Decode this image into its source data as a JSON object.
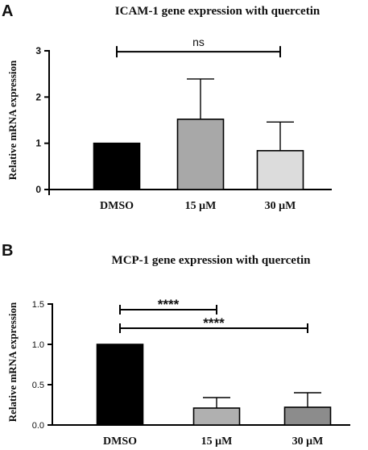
{
  "chart_data": [
    {
      "panel": "A",
      "type": "bar",
      "title": "ICAM-1 gene  expression with quercetin",
      "ylabel": "Relative mRNA expression",
      "xlabel": "",
      "categories": [
        "DMSO",
        "15 μM",
        "30 μM"
      ],
      "values": [
        1.0,
        1.52,
        0.84
      ],
      "error_upper": [
        0.0,
        0.87,
        0.62
      ],
      "bar_colors": [
        "#000000",
        "#a8a8a8",
        "#dcdcdc"
      ],
      "ylim": [
        0,
        3
      ],
      "yticks": [
        "0",
        "1",
        "2",
        "3"
      ],
      "significance": [
        {
          "from": "DMSO",
          "to": "30 μM",
          "label": "ns",
          "y": 2.98
        }
      ],
      "grid": false
    },
    {
      "panel": "B",
      "type": "bar",
      "title": "MCP-1 gene expression with quercetin",
      "ylabel": "Relative mRNA expression",
      "xlabel": "",
      "categories": [
        "DMSO",
        "15 μM",
        "30 μM"
      ],
      "values": [
        1.0,
        0.21,
        0.22
      ],
      "error_upper": [
        0.0,
        0.13,
        0.18
      ],
      "bar_colors": [
        "#000000",
        "#b0b0b0",
        "#8c8c8c"
      ],
      "ylim": [
        0,
        1.5
      ],
      "yticks": [
        "0.0",
        "0.5",
        "1.0",
        "1.5"
      ],
      "significance": [
        {
          "from": "DMSO",
          "to": "15 μM",
          "label": "****",
          "y": 1.43
        },
        {
          "from": "DMSO",
          "to": "30 μM",
          "label": "****",
          "y": 1.2
        }
      ],
      "grid": false
    }
  ]
}
